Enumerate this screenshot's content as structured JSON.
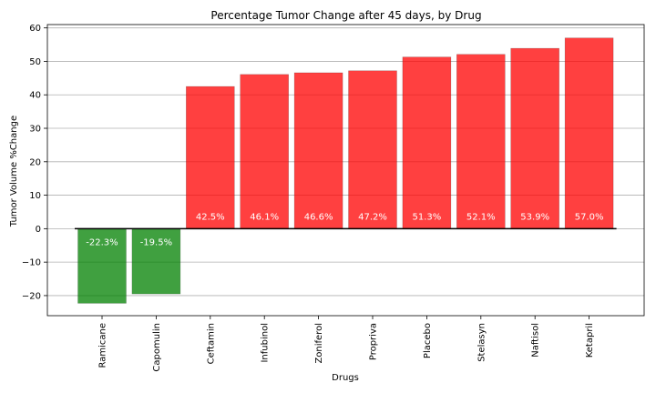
{
  "chart_data": {
    "type": "bar",
    "title": "Percentage Tumor Change after 45 days, by Drug",
    "xlabel": "Drugs",
    "ylabel": "Tumor Volume %Change",
    "categories": [
      "Ramicane",
      "Capomulin",
      "Ceftamin",
      "Infubinol",
      "Zoniferol",
      "Propriva",
      "Placebo",
      "Stelasyn",
      "Naftisol",
      "Ketapril"
    ],
    "values": [
      -22.3,
      -19.5,
      42.5,
      46.1,
      46.6,
      47.2,
      51.3,
      52.1,
      53.9,
      57.0
    ],
    "data_labels": [
      "-22.3%",
      "-19.5%",
      "42.5%",
      "46.1%",
      "46.6%",
      "47.2%",
      "51.3%",
      "52.1%",
      "53.9%",
      "57.0%"
    ],
    "ylim": [
      -26,
      61
    ],
    "yticks": [
      -20,
      -10,
      0,
      10,
      20,
      30,
      40,
      50,
      60
    ],
    "ytick_labels": [
      "−20",
      "−10",
      "0",
      "10",
      "20",
      "30",
      "40",
      "50",
      "60"
    ],
    "grid": true,
    "colors": {
      "negative": "#008000",
      "positive": "#ff0000"
    }
  }
}
